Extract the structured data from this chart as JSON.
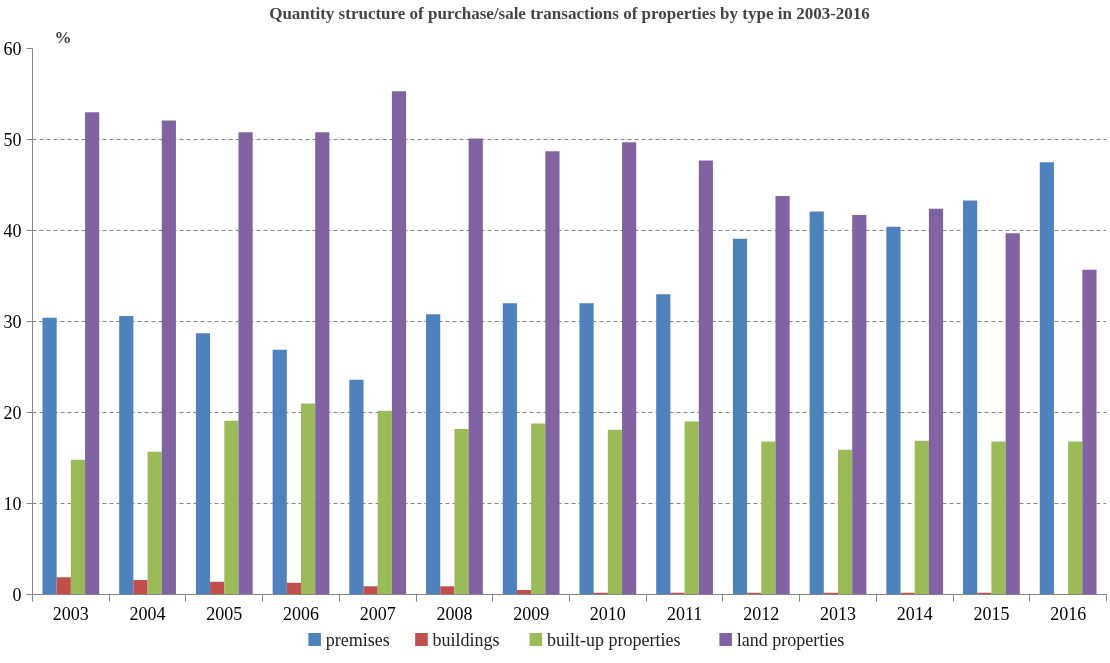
{
  "chart_data": {
    "type": "bar",
    "title": "Quantity structure of purchase/sale transactions of properties by type in 2003-2016",
    "ylabel": "%",
    "categories": [
      "2003",
      "2004",
      "2005",
      "2006",
      "2007",
      "2008",
      "2009",
      "2010",
      "2011",
      "2012",
      "2013",
      "2014",
      "2015",
      "2016"
    ],
    "series": [
      {
        "name": "premises",
        "color": "#4f81bd",
        "values": [
          30.4,
          30.6,
          28.7,
          26.9,
          23.6,
          30.8,
          32.0,
          32.0,
          33.0,
          39.1,
          42.1,
          40.4,
          43.3,
          47.5
        ]
      },
      {
        "name": "buildings",
        "color": "#c0504d",
        "values": [
          1.9,
          1.6,
          1.4,
          1.3,
          0.9,
          0.9,
          0.5,
          0.2,
          0.2,
          0.2,
          0.2,
          0.2,
          0.2,
          0
        ]
      },
      {
        "name": "built-up properties",
        "color": "#9bbb59",
        "values": [
          14.8,
          15.7,
          19.1,
          21.0,
          20.2,
          18.2,
          18.8,
          18.1,
          19.0,
          16.8,
          15.9,
          16.9,
          16.8,
          16.8
        ]
      },
      {
        "name": "land properties",
        "color": "#8064a2",
        "values": [
          53.0,
          52.1,
          50.8,
          50.8,
          55.3,
          50.1,
          48.7,
          49.7,
          47.7,
          43.8,
          41.7,
          42.4,
          39.7,
          35.7
        ]
      }
    ],
    "ylim": [
      0,
      60
    ],
    "yticks": [
      0,
      10,
      20,
      30,
      40,
      50,
      60
    ],
    "grid": "y",
    "legend": "bottom"
  }
}
